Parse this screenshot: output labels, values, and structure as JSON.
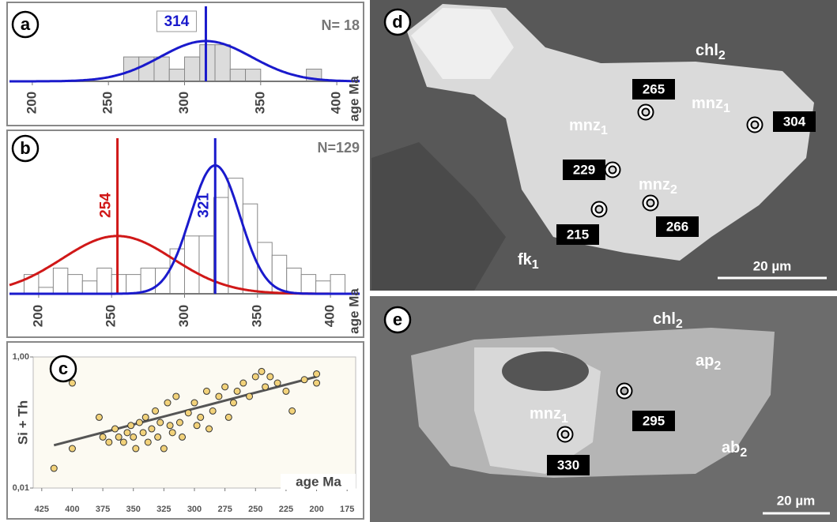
{
  "chart_data": [
    {
      "type": "histogram",
      "panel": "a",
      "annotation": "N= 18",
      "xlabel": "age Ma",
      "bins": [
        260,
        270,
        280,
        290,
        300,
        310,
        320,
        330,
        340,
        350,
        360,
        370,
        380,
        390
      ],
      "values": [
        2,
        2,
        2,
        1,
        2,
        3,
        3,
        1,
        1,
        0,
        0,
        0,
        1
      ],
      "color": "#dcdcdc",
      "xlim": [
        185,
        415
      ],
      "ylim": [
        0,
        5.5
      ],
      "xticks": [
        200,
        250,
        300,
        350,
        400
      ],
      "curves": [
        {
          "color": "#1a1acc",
          "mean": 314,
          "sd": 30,
          "peak": 3.3
        }
      ]
    },
    {
      "type": "histogram",
      "panel": "b",
      "annotation": "N=129",
      "xlabel": "age Ma",
      "bins": [
        190,
        200,
        210,
        220,
        230,
        240,
        250,
        260,
        270,
        280,
        290,
        300,
        310,
        320,
        330,
        340,
        350,
        360,
        370,
        380,
        390,
        400,
        410
      ],
      "values": [
        3,
        1,
        4,
        3,
        2,
        4,
        3,
        3,
        4,
        4,
        7,
        9,
        9,
        15,
        18,
        14,
        8,
        6,
        4,
        3,
        2,
        3
      ],
      "color": "#ffffff",
      "xlim": [
        180,
        420
      ],
      "ylim": [
        0,
        23
      ],
      "xticks": [
        200,
        250,
        300,
        350,
        400
      ],
      "curves": [
        {
          "color": "#d01818",
          "mean": 254,
          "sd": 38,
          "peak": 9
        },
        {
          "color": "#1a1acc",
          "mean": 321,
          "sd": 17,
          "peak": 20
        }
      ]
    },
    {
      "type": "scatter",
      "panel": "c",
      "ylabel": "Si + Th",
      "xlabel": "age Ma",
      "color": "#f2d27a",
      "log_y": true,
      "x": [
        415,
        400,
        400,
        378,
        375,
        370,
        365,
        362,
        358,
        355,
        352,
        350,
        348,
        345,
        342,
        340,
        338,
        335,
        332,
        330,
        328,
        325,
        322,
        320,
        318,
        315,
        312,
        310,
        305,
        300,
        298,
        295,
        290,
        288,
        285,
        280,
        275,
        272,
        268,
        265,
        260,
        255,
        250,
        245,
        242,
        238,
        232,
        225,
        220,
        210,
        200,
        200
      ],
      "values": [
        0.02,
        0.4,
        0.04,
        0.12,
        0.06,
        0.05,
        0.08,
        0.06,
        0.05,
        0.07,
        0.09,
        0.06,
        0.04,
        0.1,
        0.07,
        0.12,
        0.05,
        0.08,
        0.15,
        0.06,
        0.1,
        0.04,
        0.2,
        0.09,
        0.07,
        0.25,
        0.1,
        0.06,
        0.14,
        0.2,
        0.09,
        0.12,
        0.3,
        0.08,
        0.15,
        0.25,
        0.35,
        0.12,
        0.2,
        0.3,
        0.4,
        0.25,
        0.5,
        0.6,
        0.35,
        0.5,
        0.4,
        0.3,
        0.15,
        0.45,
        0.55,
        0.4
      ],
      "trendline": {
        "color": "#555555",
        "x": [
          415,
          200
        ],
        "values": [
          0.045,
          0.5
        ]
      },
      "xlim": [
        432,
        168
      ],
      "ylim": [
        0.01,
        1
      ],
      "xticks": [
        425,
        400,
        375,
        350,
        325,
        300,
        275,
        250,
        225,
        200,
        175
      ],
      "yticks": [
        {
          "value": 0.01,
          "label": "0,01"
        },
        {
          "value": 1,
          "label": "1,00"
        }
      ]
    }
  ],
  "micrographs": [
    {
      "letter": "d",
      "labels": [
        {
          "text": "chl",
          "sub": "2"
        },
        {
          "text": "mnz",
          "sub": "1"
        },
        {
          "text": "mnz",
          "sub": "1"
        },
        {
          "text": "mnz",
          "sub": "2"
        },
        {
          "text": "fk",
          "sub": "1"
        }
      ],
      "spots": [
        265,
        304,
        229,
        215,
        266
      ],
      "scale": "20 µm"
    },
    {
      "letter": "e",
      "labels": [
        {
          "text": "chl",
          "sub": "2"
        },
        {
          "text": "ap",
          "sub": "2"
        },
        {
          "text": "ab",
          "sub": "2"
        },
        {
          "text": "mnz",
          "sub": "1"
        }
      ],
      "spots": [
        295,
        330
      ],
      "scale": "20 µm"
    }
  ]
}
